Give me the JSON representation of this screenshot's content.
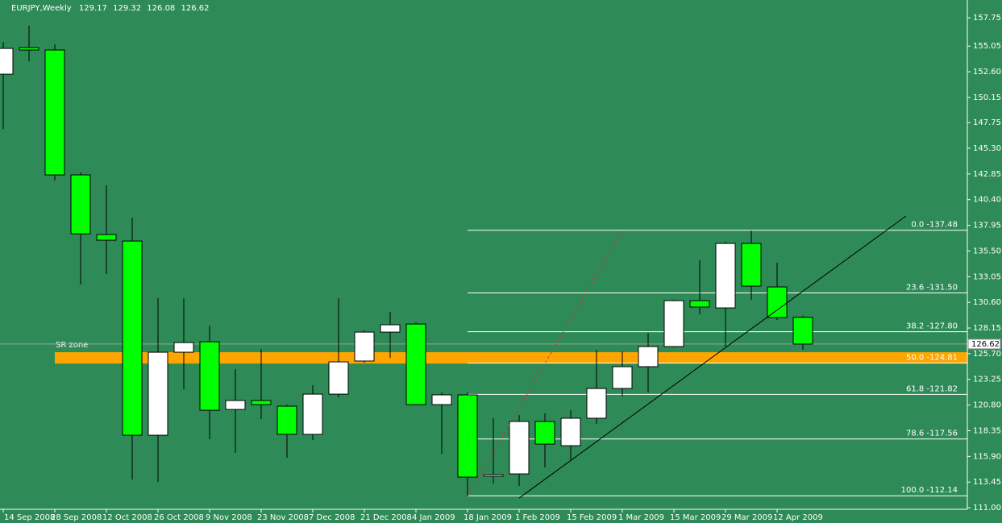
{
  "chart_data": {
    "type": "candlestick",
    "title": "EURJPY,Weekly",
    "categories": [
      "14 Sep 2008",
      null,
      "28 Sep 2008",
      null,
      "12 Oct 2008",
      null,
      "26 Oct 2008",
      null,
      "9 Nov 2008",
      null,
      "23 Nov 2008",
      null,
      "7 Dec 2008",
      null,
      "21 Dec 2008",
      null,
      "4 Jan 2009",
      null,
      "18 Jan 2009",
      null,
      "1 Feb 2009",
      null,
      "15 Feb 2009",
      null,
      "1 Mar 2009",
      null,
      "15 Mar 2009",
      null,
      "29 Mar 2009",
      null,
      "12 Apr 2009",
      null
    ],
    "open": [
      152.37,
      154.91,
      154.68,
      142.76,
      137.07,
      136.45,
      117.92,
      125.84,
      126.84,
      120.38,
      121.23,
      120.69,
      118.0,
      121.84,
      125.0,
      127.76,
      128.53,
      120.84,
      121.77,
      114.0,
      114.23,
      119.23,
      116.92,
      119.54,
      122.38,
      124.46,
      126.38,
      130.76,
      130.07,
      136.22,
      132.07,
      129.17
    ],
    "high": [
      155.44,
      157.0,
      155.21,
      142.99,
      141.76,
      138.68,
      130.99,
      130.99,
      128.38,
      124.23,
      126.15,
      120.84,
      122.69,
      130.99,
      127.92,
      129.69,
      128.69,
      122.0,
      122.0,
      119.54,
      119.84,
      120.0,
      120.3,
      126.07,
      125.92,
      127.69,
      130.84,
      134.61,
      136.37,
      137.45,
      134.38,
      129.32
    ],
    "low": [
      147.14,
      153.6,
      142.22,
      132.3,
      133.3,
      113.69,
      113.46,
      122.3,
      117.54,
      116.23,
      119.46,
      115.77,
      117.46,
      121.53,
      124.84,
      125.3,
      120.77,
      116.15,
      112.14,
      113.31,
      113.08,
      114.84,
      115.54,
      119.0,
      121.61,
      122.0,
      126.3,
      129.45,
      126.38,
      130.84,
      128.92,
      126.08
    ],
    "close": [
      154.83,
      154.68,
      142.76,
      137.14,
      136.53,
      117.92,
      125.84,
      126.76,
      120.3,
      121.23,
      120.84,
      118.0,
      121.84,
      124.92,
      127.76,
      128.46,
      120.84,
      121.77,
      113.92,
      114.15,
      119.23,
      117.07,
      119.54,
      122.38,
      124.46,
      126.38,
      130.76,
      130.15,
      136.22,
      132.15,
      129.15,
      126.62
    ],
    "bull_color": "#ffffff",
    "bear_color": "#00ff00",
    "background": "#2e8b57",
    "ylim": [
      110.85,
      159.45
    ],
    "yticks": [
      {
        "value": 111.0,
        "label": "111.00"
      },
      113.45,
      {
        "value": 115.9,
        "label": "115.90"
      },
      118.35,
      {
        "value": 120.8,
        "label": "120.80"
      },
      123.25,
      {
        "value": 125.7,
        "label": "125.70"
      },
      128.15,
      {
        "value": 130.6,
        "label": "130.60"
      },
      133.05,
      {
        "value": 135.5,
        "label": "135.50"
      },
      137.95,
      {
        "value": 140.4,
        "label": "140.40"
      },
      142.85,
      {
        "value": 145.3,
        "label": "145.30"
      },
      147.75,
      150.15,
      {
        "value": 152.6,
        "label": "152.60"
      },
      155.05,
      157.75
    ],
    "fib_levels": [
      {
        "value": 137.48,
        "label": "0.0 -137.48"
      },
      {
        "value": 131.5,
        "label": "23.6 -131.50"
      },
      {
        "value": 127.8,
        "label": "38.2 -127.80"
      },
      {
        "value": 124.81,
        "label": "50.0 -124.81"
      },
      {
        "value": 121.82,
        "label": "61.8 -121.82"
      },
      {
        "value": 117.56,
        "label": "78.6 -117.56"
      },
      {
        "value": 112.14,
        "label": "100.0 -112.14"
      }
    ],
    "sr_zone": {
      "label": "SR zone",
      "range": [
        124.76,
        125.84
      ],
      "color": "#ffa500"
    },
    "trendlines": [
      {
        "x": [
          20,
          35
        ],
        "values": [
          111.92,
          138.84
        ],
        "color": "#000000",
        "dashed": false
      },
      {
        "x": [
          18,
          24
        ],
        "values": [
          112.08,
          137.45
        ],
        "color": "#cc3333",
        "dashed": true
      }
    ]
  }
}
